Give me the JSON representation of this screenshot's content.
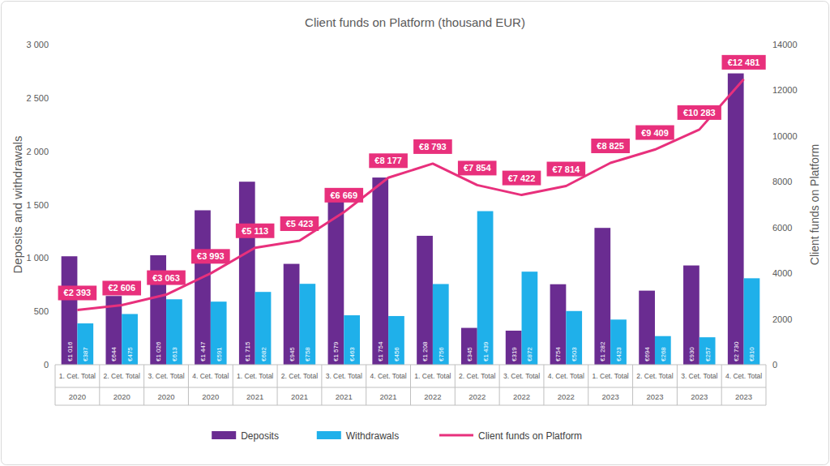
{
  "chart_data": {
    "type": "bar",
    "title": "Client funds on Platform (thousand EUR)",
    "ylabel": "Deposits and withdrawals",
    "y2label": "Client funds on Platform",
    "categories": [
      "1. Cet. Total",
      "2. Cet. Total",
      "3. Cet. Total",
      "4. Cet. Total",
      "1. Cet. Total",
      "2. Cet. Total",
      "3. Cet. Total",
      "4. Cet. Total",
      "1. Cet. Total",
      "2. Cet. Total",
      "3. Cet. Total",
      "4. Cet. Total",
      "1. Cet. Total",
      "2. Cet. Total",
      "3. Cet. Total",
      "4. Cet. Total"
    ],
    "category_years": [
      "2020",
      "2020",
      "2020",
      "2020",
      "2021",
      "2021",
      "2021",
      "2021",
      "2022",
      "2022",
      "2022",
      "2022",
      "2023",
      "2023",
      "2023",
      "2023"
    ],
    "ylim": [
      0,
      3000
    ],
    "yticks": [
      0,
      500,
      {
        "value": 1000,
        "label": "1 000"
      },
      {
        "value": 1500,
        "label": "1 500"
      },
      {
        "value": 2000,
        "label": "2 000"
      },
      {
        "value": 2500,
        "label": "2 500"
      },
      {
        "value": 3000,
        "label": "3 000"
      }
    ],
    "y2lim": [
      0,
      14000
    ],
    "y2ticks": [
      0,
      2000,
      4000,
      6000,
      8000,
      10000,
      12000,
      14000
    ],
    "grid": false,
    "legend": "bottom",
    "data_labels": true,
    "series": [
      {
        "name": "Deposits",
        "type": "bar",
        "color": "#6a2c91",
        "values": [
          1016,
          644,
          1026,
          1447,
          1715,
          945,
          1579,
          1754,
          1208,
          345,
          319,
          754,
          1282,
          694,
          930,
          2730
        ],
        "value_labels": [
          "€1 016",
          "€644",
          "€1 026",
          "€1 447",
          "€1 715",
          "€945",
          "€1 579",
          "€1 754",
          "€1 208",
          "€345",
          "€319",
          "€754",
          "€1 282",
          "€694",
          "€930",
          "€2 730"
        ]
      },
      {
        "name": "Withdrawals",
        "type": "bar",
        "color": "#1fb0ea",
        "values": [
          387,
          475,
          613,
          591,
          682,
          758,
          463,
          456,
          756,
          1439,
          872,
          503,
          423,
          268,
          257,
          810
        ],
        "value_labels": [
          "€387",
          "€475",
          "€613",
          "€591",
          "€682",
          "€758",
          "€463",
          "€456",
          "€756",
          "€1 439",
          "€872",
          "€503",
          "€423",
          "€268",
          "€257",
          "€810"
        ]
      },
      {
        "name": "Client funds on Platform",
        "type": "line",
        "axis": "y2",
        "color": "#e8307c",
        "line_style": "solid",
        "values": [
          2393,
          2606,
          3063,
          3993,
          5113,
          5423,
          6669,
          8177,
          8793,
          7854,
          7422,
          7814,
          8825,
          9409,
          10283,
          12481
        ],
        "value_labels": [
          "€2 393",
          "€2 606",
          "€3 063",
          "€3 993",
          "€5 113",
          "€5 423",
          "€6 669",
          "€8 177",
          "€8 793",
          "€7 854",
          "€7 422",
          "€7 814",
          "€8 825",
          "€9 409",
          "€10 283",
          "€12 481"
        ]
      }
    ]
  }
}
